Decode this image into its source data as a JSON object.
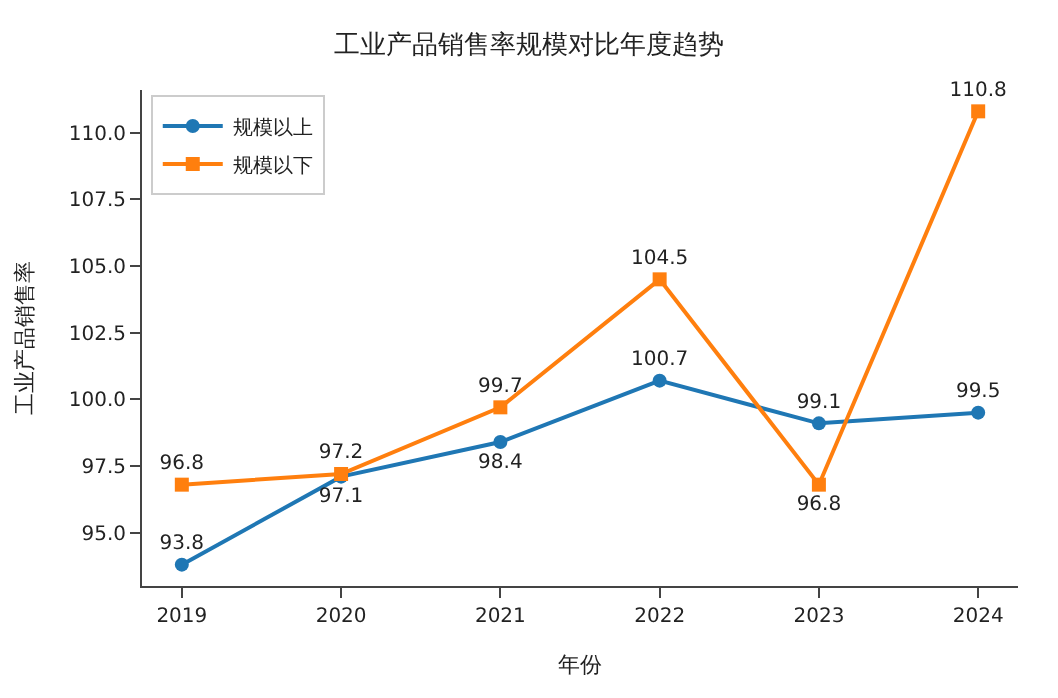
{
  "chart_data": {
    "type": "line",
    "title": "工业产品销售率规模对比年度趋势",
    "xlabel": "年份",
    "ylabel": "工业产品销售率",
    "categories": [
      "2019",
      "2020",
      "2021",
      "2022",
      "2023",
      "2024"
    ],
    "series": [
      {
        "name": "规模以上",
        "color": "#1f77b4",
        "marker": "circle",
        "values": [
          93.8,
          97.1,
          98.4,
          100.7,
          99.1,
          99.5
        ]
      },
      {
        "name": "规模以下",
        "color": "#ff7f0e",
        "marker": "square",
        "values": [
          96.8,
          97.2,
          99.7,
          104.5,
          96.8,
          110.8
        ]
      }
    ],
    "ylim": [
      93.0,
      111.6
    ],
    "yticks": [
      {
        "value": 95,
        "label": "95.0"
      },
      {
        "value": 97.5,
        "label": "97.5"
      },
      {
        "value": 100,
        "label": "100.0"
      },
      {
        "value": 102.5,
        "label": "102.5"
      },
      {
        "value": 105,
        "label": "105.0"
      },
      {
        "value": 107.5,
        "label": "107.5"
      },
      {
        "value": 110,
        "label": "110.0"
      }
    ],
    "data_labels": true,
    "legend": "top left",
    "line_style": "solid"
  }
}
